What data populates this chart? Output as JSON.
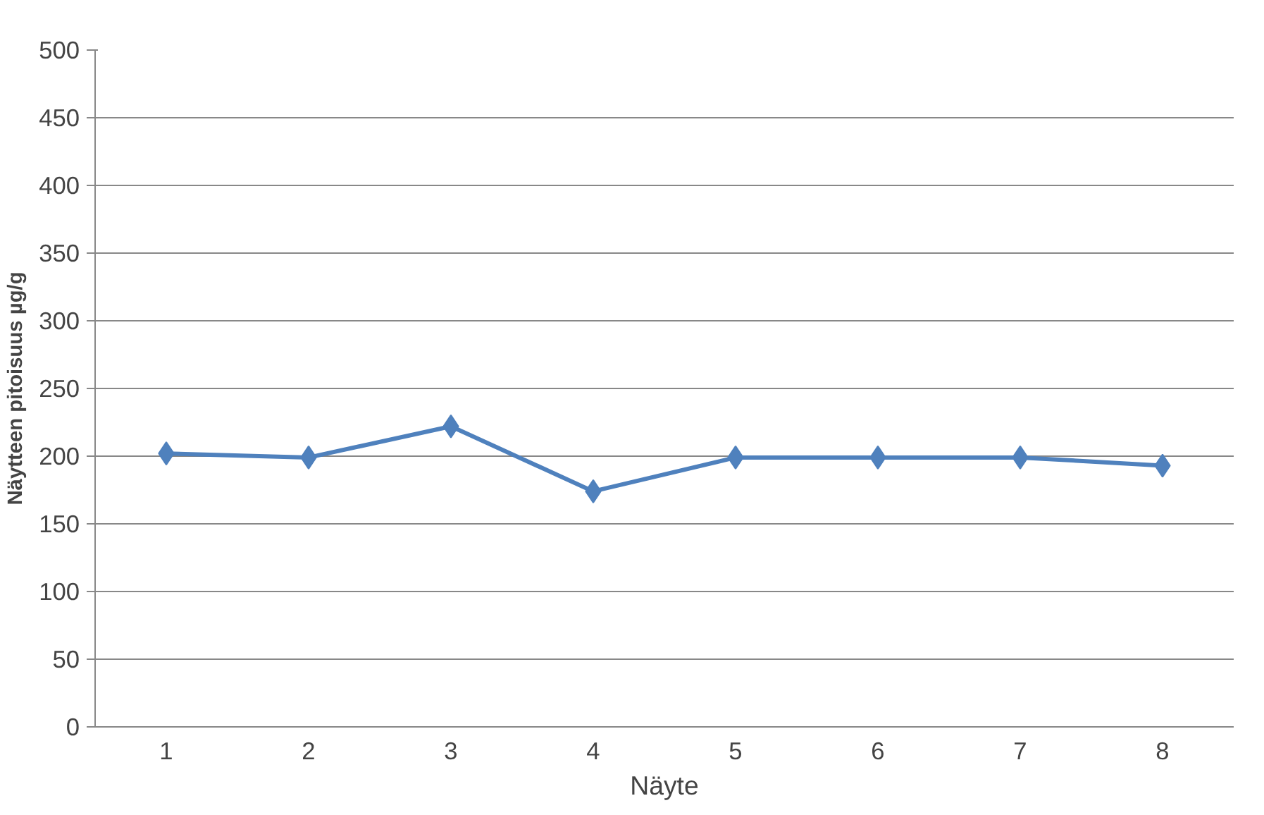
{
  "chart_data": {
    "type": "line",
    "xlabel": "Näyte",
    "ylabel": "Näytteen pitoisuus µg/g",
    "categories": [
      "1",
      "2",
      "3",
      "4",
      "5",
      "6",
      "7",
      "8"
    ],
    "series": [
      {
        "color": "#4f81bd",
        "values": [
          202,
          199,
          222,
          174,
          199,
          199,
          199,
          193
        ]
      }
    ],
    "ylim": [
      0,
      500
    ],
    "yticks": [
      0,
      50,
      100,
      150,
      200,
      250,
      300,
      350,
      400,
      450,
      500
    ],
    "grid": "y",
    "marker": "diamond",
    "line_style": "solid"
  }
}
